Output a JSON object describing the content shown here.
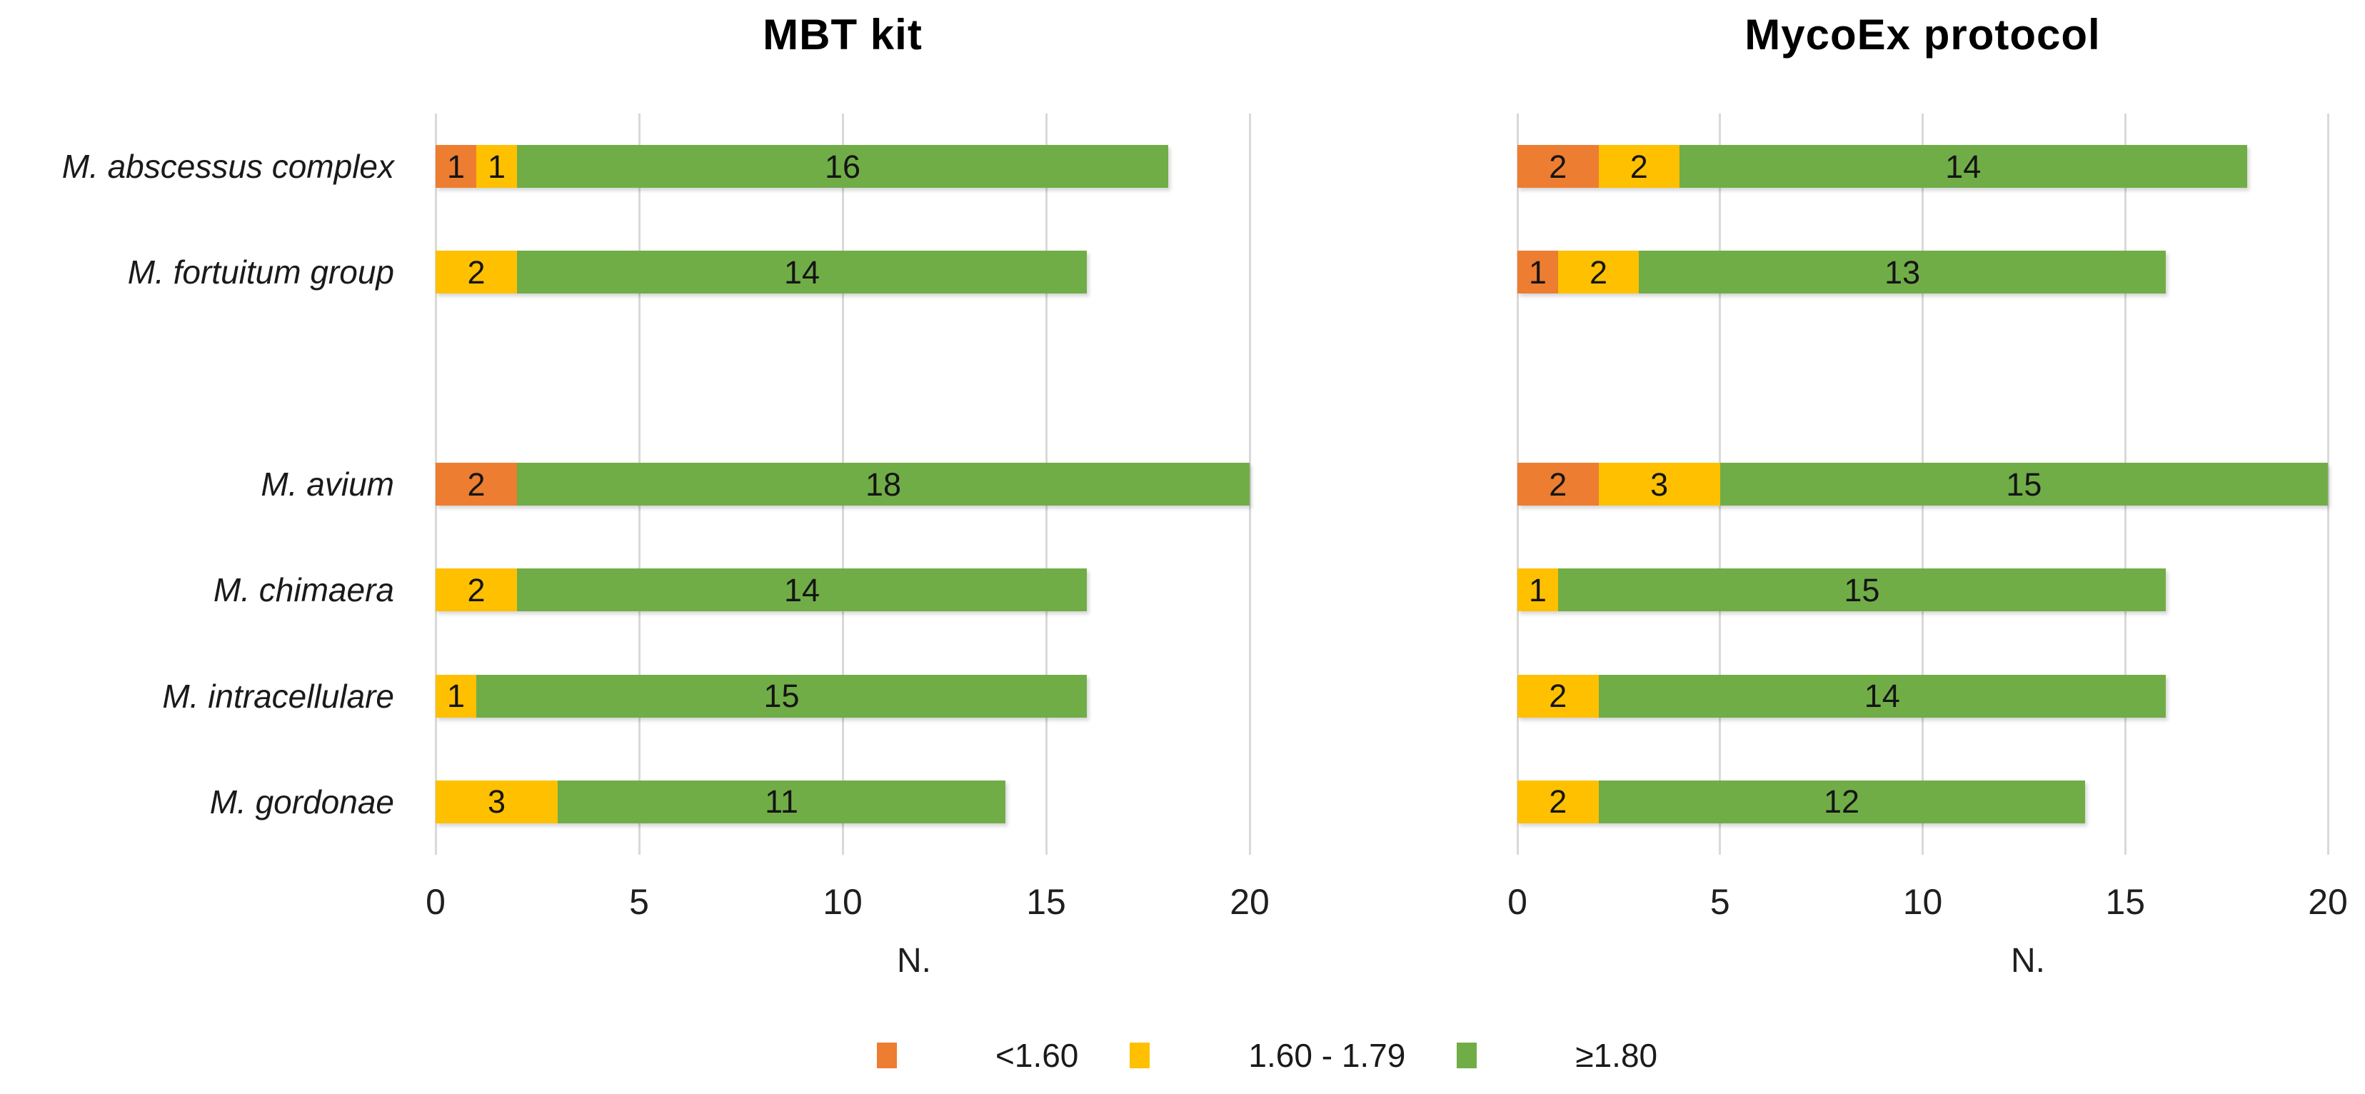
{
  "figure": {
    "background": "#ffffff",
    "gridline_color": "#d9d9d9"
  },
  "legend": {
    "items": [
      {
        "label": "<1.60",
        "color": "#ED7D31"
      },
      {
        "label": "1.60 - 1.79",
        "color": "#FFC000"
      },
      {
        "label": "≥1.80",
        "color": "#70AD47"
      }
    ]
  },
  "chart_data": [
    {
      "type": "bar",
      "orientation": "horizontal-stacked",
      "title": "MBT kit",
      "xlabel": "N.",
      "xlim": [
        0,
        20
      ],
      "xticks": [
        0,
        5,
        10,
        15,
        20
      ],
      "grid": "vertical-on",
      "legend_position": "bottom-shared",
      "categories": [
        "M. abscessus complex",
        "M. fortuitum group",
        "",
        "M. avium",
        "M. chimaera",
        "M. intracellulare",
        "M. gordonae"
      ],
      "series": [
        {
          "name": "<1.60",
          "color": "#ED7D31",
          "values": [
            1,
            0,
            0,
            2,
            0,
            0,
            0
          ]
        },
        {
          "name": "1.60 - 1.79",
          "color": "#FFC000",
          "values": [
            1,
            2,
            0,
            0,
            2,
            1,
            3
          ]
        },
        {
          "name": "≥1.80",
          "color": "#70AD47",
          "values": [
            16,
            14,
            0,
            18,
            14,
            15,
            11
          ]
        }
      ]
    },
    {
      "type": "bar",
      "orientation": "horizontal-stacked",
      "title": "MycoEx protocol",
      "xlabel": "N.",
      "xlim": [
        0,
        20
      ],
      "xticks": [
        0,
        5,
        10,
        15,
        20
      ],
      "grid": "vertical-on",
      "legend_position": "bottom-shared",
      "categories": [
        "M. abscessus complex",
        "M. fortuitum group",
        "",
        "M. avium",
        "M. chimaera",
        "M. intracellulare",
        "M. gordonae"
      ],
      "series": [
        {
          "name": "<1.60",
          "color": "#ED7D31",
          "values": [
            2,
            1,
            0,
            2,
            0,
            0,
            0
          ]
        },
        {
          "name": "1.60 - 1.79",
          "color": "#FFC000",
          "values": [
            2,
            2,
            0,
            3,
            1,
            2,
            2
          ]
        },
        {
          "name": "≥1.80",
          "color": "#70AD47",
          "values": [
            14,
            13,
            0,
            15,
            15,
            14,
            12
          ]
        }
      ]
    }
  ]
}
